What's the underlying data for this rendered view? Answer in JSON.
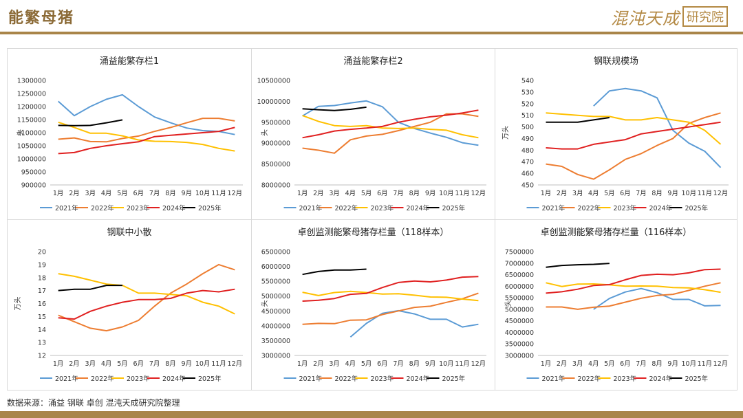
{
  "header": {
    "title": "能繁母猪",
    "logo_text": "混沌天成",
    "logo_box": "研究院"
  },
  "footer": {
    "source": "数据来源：涌益 钢联 卓创 混沌天成研究院整理"
  },
  "colors": {
    "2021年": "#5b9bd5",
    "2022年": "#ed7d31",
    "2023年": "#ffc000",
    "2024年": "#e02020",
    "2025年": "#000000",
    "accent": "#a98549"
  },
  "chart_data": [
    {
      "type": "line",
      "title": "涌益能繁存栏1",
      "ylabel": "头",
      "ylim": [
        900000,
        1300000
      ],
      "yticks": [
        900000,
        950000,
        1000000,
        1050000,
        1100000,
        1150000,
        1200000,
        1250000,
        1300000
      ],
      "categories": [
        "1月",
        "2月",
        "3月",
        "4月",
        "5月",
        "6月",
        "7月",
        "8月",
        "9月",
        "10月",
        "11月",
        "12月"
      ],
      "series": [
        {
          "name": "2021年",
          "values": [
            1220000,
            1165000,
            1200000,
            1228000,
            1245000,
            1200000,
            1160000,
            1138000,
            1118000,
            1108000,
            1105000,
            1093000
          ]
        },
        {
          "name": "2022年",
          "values": [
            1075000,
            1080000,
            1066000,
            1065000,
            1078000,
            1087000,
            1105000,
            1120000,
            1138000,
            1155000,
            1155000,
            1145000
          ]
        },
        {
          "name": "2023年",
          "values": [
            1140000,
            1120000,
            1098000,
            1098000,
            1088000,
            1072000,
            1067000,
            1066000,
            1063000,
            1055000,
            1040000,
            1030000
          ]
        },
        {
          "name": "2024年",
          "values": [
            1020000,
            1024000,
            1040000,
            1050000,
            1058000,
            1065000,
            1085000,
            1090000,
            1095000,
            1100000,
            1105000,
            1120000
          ]
        },
        {
          "name": "2025年",
          "values": [
            1128000,
            1127000,
            1128000,
            1138000,
            1149000,
            null,
            null,
            null,
            null,
            null,
            null,
            null
          ]
        }
      ]
    },
    {
      "type": "line",
      "title": "涌益能繁存栏2",
      "ylabel": "头",
      "ylim": [
        8000000,
        10500000
      ],
      "yticks": [
        8000000,
        8500000,
        9000000,
        9500000,
        10000000,
        10500000
      ],
      "categories": [
        "1月",
        "2月",
        "3月",
        "4月",
        "5月",
        "6月",
        "7月",
        "8月",
        "9月",
        "10月",
        "11月",
        "12月"
      ],
      "series": [
        {
          "name": "2021年",
          "values": [
            9650000,
            9880000,
            9900000,
            9960000,
            10010000,
            9870000,
            9500000,
            9350000,
            9240000,
            9140000,
            9010000,
            8950000
          ]
        },
        {
          "name": "2022年",
          "values": [
            8880000,
            8830000,
            8760000,
            9080000,
            9170000,
            9210000,
            9300000,
            9400000,
            9500000,
            9700000,
            9700000,
            9640000
          ]
        },
        {
          "name": "2023年",
          "values": [
            9660000,
            9520000,
            9420000,
            9400000,
            9420000,
            9360000,
            9350000,
            9360000,
            9330000,
            9310000,
            9200000,
            9130000
          ]
        },
        {
          "name": "2024年",
          "values": [
            9130000,
            9200000,
            9290000,
            9330000,
            9360000,
            9400000,
            9500000,
            9570000,
            9630000,
            9670000,
            9720000,
            9790000
          ]
        },
        {
          "name": "2025年",
          "values": [
            9820000,
            9800000,
            9780000,
            9810000,
            9860000,
            null,
            null,
            null,
            null,
            null,
            null,
            null
          ]
        }
      ]
    },
    {
      "type": "line",
      "title": "钢联规模场",
      "ylabel": "万头",
      "ylim": [
        450,
        540
      ],
      "yticks": [
        450,
        460,
        470,
        480,
        490,
        500,
        510,
        520,
        530,
        540
      ],
      "categories": [
        "1月",
        "2月",
        "3月",
        "4月",
        "5月",
        "6月",
        "7月",
        "8月",
        "9月",
        "10月",
        "11月",
        "12月"
      ],
      "series": [
        {
          "name": "2021年",
          "values": [
            null,
            null,
            null,
            518,
            531,
            533,
            531,
            525,
            497,
            486,
            479,
            465
          ]
        },
        {
          "name": "2022年",
          "values": [
            468,
            466,
            459,
            455,
            463,
            472,
            477,
            484,
            490,
            503,
            508,
            512
          ]
        },
        {
          "name": "2023年",
          "values": [
            512,
            511,
            510,
            509,
            509,
            506,
            506,
            508,
            506,
            504,
            497,
            485
          ]
        },
        {
          "name": "2024年",
          "values": [
            482,
            481,
            481,
            485,
            487,
            489,
            494,
            496,
            498,
            500,
            502,
            504
          ]
        },
        {
          "name": "2025年",
          "values": [
            504,
            504,
            504,
            506,
            508,
            null,
            null,
            null,
            null,
            null,
            null,
            null
          ]
        }
      ]
    },
    {
      "type": "line",
      "title": "钢联中小散",
      "ylabel": "万头",
      "ylim": [
        12,
        20
      ],
      "yticks": [
        12,
        13,
        14,
        15,
        16,
        17,
        18,
        19,
        20
      ],
      "categories": [
        "1月",
        "2月",
        "3月",
        "4月",
        "5月",
        "6月",
        "7月",
        "8月",
        "9月",
        "10月",
        "11月",
        "12月"
      ],
      "series": [
        {
          "name": "2021年",
          "values": [
            null,
            null,
            null,
            null,
            null,
            null,
            null,
            null,
            null,
            null,
            null,
            null
          ]
        },
        {
          "name": "2022年",
          "values": [
            15.1,
            14.6,
            14.1,
            13.9,
            14.2,
            14.7,
            15.8,
            16.8,
            17.5,
            18.3,
            19.0,
            18.6
          ]
        },
        {
          "name": "2023年",
          "values": [
            18.3,
            18.1,
            17.8,
            17.5,
            17.4,
            16.8,
            16.8,
            16.7,
            16.6,
            16.1,
            15.8,
            15.2
          ]
        },
        {
          "name": "2024年",
          "values": [
            14.9,
            14.8,
            15.4,
            15.8,
            16.1,
            16.3,
            16.3,
            16.4,
            16.8,
            17.0,
            16.9,
            17.1
          ]
        },
        {
          "name": "2025年",
          "values": [
            17.0,
            17.1,
            17.1,
            17.4,
            17.4,
            null,
            null,
            null,
            null,
            null,
            null,
            null
          ]
        }
      ]
    },
    {
      "type": "line",
      "title": "卓创监测能繁母猪存栏量（118样本）",
      "ylabel": "头",
      "ylim": [
        3000000,
        6500000
      ],
      "yticks": [
        3000000,
        3500000,
        4000000,
        4500000,
        5000000,
        5500000,
        6000000,
        6500000
      ],
      "categories": [
        "1月",
        "2月",
        "3月",
        "4月",
        "5月",
        "6月",
        "7月",
        "8月",
        "9月",
        "10月",
        "11月",
        "12月"
      ],
      "series": [
        {
          "name": "2021年",
          "values": [
            null,
            null,
            null,
            3620000,
            4080000,
            4420000,
            4510000,
            4400000,
            4220000,
            4220000,
            3960000,
            4050000
          ]
        },
        {
          "name": "2022年",
          "values": [
            4050000,
            4080000,
            4070000,
            4190000,
            4200000,
            4380000,
            4500000,
            4620000,
            4660000,
            4790000,
            4910000,
            5100000
          ]
        },
        {
          "name": "2023年",
          "values": [
            5130000,
            5020000,
            5120000,
            5160000,
            5120000,
            5070000,
            5080000,
            5030000,
            4970000,
            4960000,
            4900000,
            4850000
          ]
        },
        {
          "name": "2024年",
          "values": [
            4830000,
            4860000,
            4920000,
            5060000,
            5090000,
            5290000,
            5460000,
            5510000,
            5480000,
            5540000,
            5640000,
            5660000
          ]
        },
        {
          "name": "2025年",
          "values": [
            5730000,
            5830000,
            5880000,
            5880000,
            5910000,
            null,
            null,
            null,
            null,
            null,
            null,
            null
          ]
        }
      ]
    },
    {
      "type": "line",
      "title": "卓创监测能繁母猪存栏量（116样本）",
      "ylabel": "头",
      "ylim": [
        3000000,
        7500000
      ],
      "yticks": [
        3000000,
        3500000,
        4000000,
        4500000,
        5000000,
        5500000,
        6000000,
        6500000,
        7000000,
        7500000
      ],
      "categories": [
        "1月",
        "2月",
        "3月",
        "4月",
        "5月",
        "6月",
        "7月",
        "8月",
        "9月",
        "10月",
        "11月",
        "12月"
      ],
      "series": [
        {
          "name": "2021年",
          "values": [
            null,
            null,
            null,
            5000000,
            5470000,
            5750000,
            5900000,
            5720000,
            5430000,
            5430000,
            5150000,
            5170000
          ]
        },
        {
          "name": "2022年",
          "values": [
            5100000,
            5100000,
            5000000,
            5090000,
            5140000,
            5310000,
            5480000,
            5600000,
            5650000,
            5820000,
            6000000,
            6150000
          ]
        },
        {
          "name": "2023年",
          "values": [
            6150000,
            5990000,
            6090000,
            6100000,
            6060000,
            6000000,
            6010000,
            6000000,
            5940000,
            5930000,
            5850000,
            5740000
          ]
        },
        {
          "name": "2024年",
          "values": [
            5700000,
            5760000,
            5870000,
            6030000,
            6070000,
            6280000,
            6470000,
            6520000,
            6500000,
            6580000,
            6720000,
            6740000
          ]
        },
        {
          "name": "2025年",
          "values": [
            6820000,
            6900000,
            6930000,
            6950000,
            6990000,
            null,
            null,
            null,
            null,
            null,
            null,
            null
          ]
        }
      ]
    }
  ]
}
